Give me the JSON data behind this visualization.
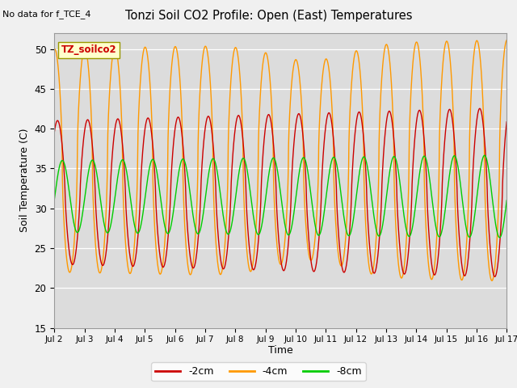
{
  "title": "Tonzi Soil CO2 Profile: Open (East) Temperatures",
  "no_data_text": "No data for f_TCE_4",
  "dataset_label": "TZ_soilco2",
  "ylabel": "Soil Temperature (C)",
  "xlabel": "Time",
  "ylim": [
    15,
    52
  ],
  "yticks": [
    15,
    20,
    25,
    30,
    35,
    40,
    45,
    50
  ],
  "plot_bg_color": "#dcdcdc",
  "fig_bg_color": "#f0f0f0",
  "line_colors": {
    "2cm": "#cc0000",
    "4cm": "#ff9900",
    "8cm": "#00cc00"
  },
  "x_tick_labels": [
    "Jul 2",
    "Jul 3",
    "Jul 4",
    "Jul 5",
    "Jul 6",
    "Jul 7",
    "Jul 8",
    "Jul 9",
    "Jul 10",
    "Jul 11",
    "Jul 12",
    "Jul 13",
    "Jul 14",
    "Jul 15",
    "Jul 16",
    "Jul 17"
  ],
  "num_days": 15,
  "orange_peak": 50,
  "orange_trough": 22,
  "red_peak": 41,
  "red_trough": 23,
  "green_peak": 36,
  "green_trough": 27,
  "phase_orange": 1.5,
  "phase_red": 0.9,
  "phase_green": -0.1
}
